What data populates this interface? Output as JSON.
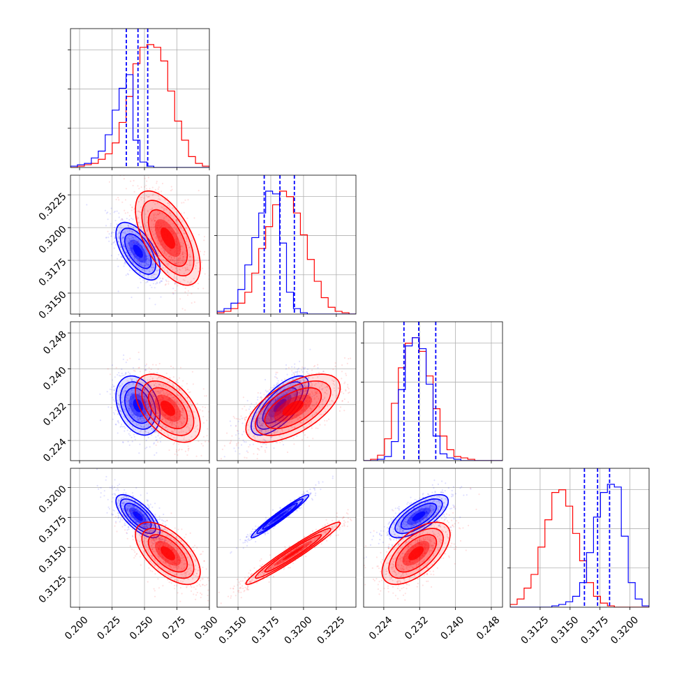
{
  "colors": {
    "blue": "#0000ff",
    "red": "#ff0000",
    "grid": "#b0b0b0"
  },
  "chart_data": {
    "type": "corner",
    "title": "",
    "parameters": [
      "",
      "",
      "",
      ""
    ],
    "series": [
      {
        "name": "",
        "color": "#0000ff",
        "quantiles": [
          [
            0.236,
            0.245,
            0.2525
          ],
          [
            0.317,
            0.3182,
            0.3193
          ],
          [
            0.2285,
            0.2318,
            0.2356
          ],
          [
            0.3162,
            0.3173,
            0.3183
          ]
        ],
        "means": [
          0.245,
          0.3182,
          0.2318,
          0.3176
        ],
        "sigmas": [
          0.0085,
          0.0011,
          0.0033,
          0.0009
        ],
        "correlations": {
          "1-0": -0.6,
          "2-0": -0.3,
          "2-1": 0.7,
          "3-0": -0.7,
          "3-1": 0.97,
          "3-2": 0.7
        }
      },
      {
        "name": "",
        "color": "#ff0000",
        "quantiles": null,
        "means": [
          0.268,
          0.3192,
          0.2312,
          0.3145
        ],
        "sigmas": [
          0.0125,
          0.0018,
          0.0038,
          0.0013
        ],
        "correlations": {
          "1-0": -0.6,
          "2-0": -0.5,
          "2-1": 0.6,
          "3-0": -0.6,
          "3-1": 0.97,
          "3-2": 0.6
        }
      }
    ],
    "axes": [
      {
        "range": [
          0.193,
          0.3
        ],
        "ticks": [
          "0.200",
          "0.225",
          "0.250",
          "0.275",
          "0.300"
        ]
      },
      {
        "range": [
          0.3134,
          0.324
        ],
        "ticks": [
          "0.3150",
          "0.3175",
          "0.3200",
          "0.3225"
        ]
      },
      {
        "range": [
          0.2195,
          0.2505
        ],
        "ticks": [
          "0.224",
          "0.232",
          "0.240",
          "0.248"
        ]
      },
      {
        "range": [
          0.31,
          0.3216
        ],
        "ticks": [
          "0.3125",
          "0.3150",
          "0.3175",
          "0.3200"
        ]
      }
    ],
    "histograms": [
      {
        "blue": [
          1,
          2,
          3,
          7,
          12,
          24,
          42,
          58,
          68,
          20,
          4,
          1,
          0,
          0,
          0,
          0,
          0,
          0,
          0,
          0
        ],
        "red": [
          0,
          1,
          2,
          3,
          6,
          10,
          18,
          33,
          52,
          76,
          88,
          90,
          88,
          78,
          56,
          34,
          20,
          8,
          3,
          1
        ]
      },
      {
        "blue": [
          2,
          4,
          8,
          18,
          36,
          56,
          74,
          90,
          88,
          52,
          16,
          4,
          1,
          0,
          0,
          0,
          0,
          0,
          0,
          0
        ],
        "red": [
          1,
          2,
          4,
          8,
          16,
          30,
          48,
          64,
          80,
          90,
          86,
          74,
          58,
          40,
          24,
          12,
          5,
          2,
          1,
          0
        ]
      },
      {
        "blue": [
          0,
          0,
          1,
          3,
          14,
          52,
          84,
          90,
          82,
          56,
          18,
          5,
          2,
          1,
          0,
          0,
          0,
          0,
          0,
          0
        ],
        "red": [
          0,
          1,
          4,
          16,
          42,
          68,
          86,
          90,
          80,
          62,
          38,
          18,
          8,
          3,
          2,
          1,
          0,
          0,
          0,
          0
        ]
      },
      {
        "blue": [
          0,
          0,
          0,
          0,
          0,
          0,
          1,
          2,
          4,
          8,
          18,
          40,
          66,
          84,
          90,
          88,
          52,
          18,
          6,
          1
        ],
        "red": [
          2,
          6,
          14,
          24,
          44,
          64,
          84,
          86,
          74,
          54,
          34,
          18,
          8,
          3,
          1,
          0,
          0,
          0,
          0,
          0
        ]
      }
    ],
    "grid": true,
    "legend": "none"
  }
}
